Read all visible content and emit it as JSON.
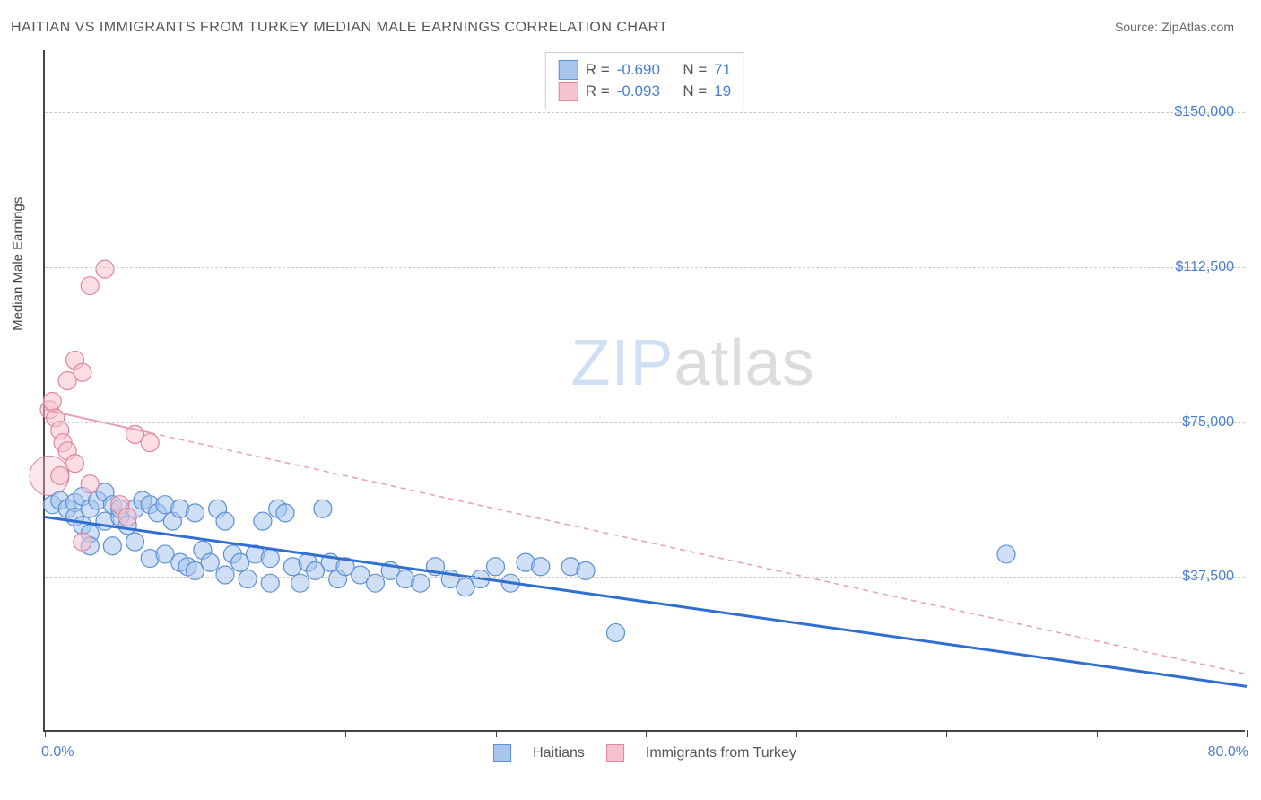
{
  "chart": {
    "title": "HAITIAN VS IMMIGRANTS FROM TURKEY MEDIAN MALE EARNINGS CORRELATION CHART",
    "source_label": "Source: ",
    "source_name": "ZipAtlas.com",
    "y_axis_title": "Median Male Earnings",
    "watermark_zip": "ZIP",
    "watermark_atlas": "atlas",
    "background_color": "#ffffff",
    "grid_color": "#cccccc",
    "axis_color": "#444444",
    "tick_label_color": "#4a7dd8",
    "x_range": [
      0,
      80
    ],
    "y_range": [
      0,
      165000
    ],
    "y_ticks": [
      {
        "value": 37500,
        "label": "$37,500"
      },
      {
        "value": 75000,
        "label": "$75,000"
      },
      {
        "value": 112500,
        "label": "$112,500"
      },
      {
        "value": 150000,
        "label": "$150,000"
      }
    ],
    "x_ticks": [
      0,
      10,
      20,
      30,
      40,
      50,
      60,
      70,
      80
    ],
    "x_min_label": "0.0%",
    "x_max_label": "80.0%",
    "series": [
      {
        "id": "haitians",
        "label": "Haitians",
        "fill_color": "#a8c5ec",
        "stroke_color": "#5b8fd6",
        "fill_opacity": 0.55,
        "line_color": "#2f6fd0",
        "line_width": 3,
        "line_dash": "none",
        "marker_radius": 10,
        "R": "-0.690",
        "N": "71",
        "trend": {
          "x1": 0,
          "y1": 52000,
          "x2": 80,
          "y2": 11000,
          "extrapolated_from_x": 10
        },
        "points": [
          [
            0.5,
            55000
          ],
          [
            1,
            56000
          ],
          [
            1.5,
            54000
          ],
          [
            2,
            55500
          ],
          [
            2,
            52000
          ],
          [
            2.5,
            57000
          ],
          [
            2.5,
            50000
          ],
          [
            3,
            54000
          ],
          [
            3,
            48000
          ],
          [
            3.5,
            56000
          ],
          [
            4,
            51000
          ],
          [
            4,
            58000
          ],
          [
            4.5,
            55000
          ],
          [
            4.5,
            45000
          ],
          [
            5,
            52000
          ],
          [
            5,
            54000
          ],
          [
            5.5,
            50000
          ],
          [
            6,
            54000
          ],
          [
            6,
            46000
          ],
          [
            6.5,
            56000
          ],
          [
            7,
            55000
          ],
          [
            7,
            42000
          ],
          [
            7.5,
            53000
          ],
          [
            8,
            55000
          ],
          [
            8,
            43000
          ],
          [
            8.5,
            51000
          ],
          [
            9,
            41000
          ],
          [
            9,
            54000
          ],
          [
            9.5,
            40000
          ],
          [
            10,
            53000
          ],
          [
            10,
            39000
          ],
          [
            10.5,
            44000
          ],
          [
            11,
            41000
          ],
          [
            11.5,
            54000
          ],
          [
            12,
            38000
          ],
          [
            12,
            51000
          ],
          [
            12.5,
            43000
          ],
          [
            13,
            41000
          ],
          [
            13.5,
            37000
          ],
          [
            14,
            43000
          ],
          [
            14.5,
            51000
          ],
          [
            15,
            36000
          ],
          [
            15,
            42000
          ],
          [
            15.5,
            54000
          ],
          [
            16,
            53000
          ],
          [
            16.5,
            40000
          ],
          [
            17,
            36000
          ],
          [
            17.5,
            41000
          ],
          [
            18,
            39000
          ],
          [
            18.5,
            54000
          ],
          [
            19,
            41000
          ],
          [
            19.5,
            37000
          ],
          [
            20,
            40000
          ],
          [
            21,
            38000
          ],
          [
            22,
            36000
          ],
          [
            23,
            39000
          ],
          [
            24,
            37000
          ],
          [
            25,
            36000
          ],
          [
            26,
            40000
          ],
          [
            27,
            37000
          ],
          [
            28,
            35000
          ],
          [
            29,
            37000
          ],
          [
            30,
            40000
          ],
          [
            31,
            36000
          ],
          [
            32,
            41000
          ],
          [
            33,
            40000
          ],
          [
            35,
            40000
          ],
          [
            36,
            39000
          ],
          [
            38,
            24000
          ],
          [
            64,
            43000
          ],
          [
            3,
            45000
          ]
        ]
      },
      {
        "id": "turkey",
        "label": "Immigrants from Turkey",
        "fill_color": "#f5c2ce",
        "stroke_color": "#e085a0",
        "fill_opacity": 0.55,
        "line_color": "#e99fb4",
        "line_width": 2,
        "line_dash": "6,5",
        "marker_radius": 10,
        "R": "-0.093",
        "N": "19",
        "trend": {
          "x1": 0,
          "y1": 78000,
          "x2": 80,
          "y2": 14000,
          "extrapolated_from_x": 7
        },
        "points": [
          [
            0.3,
            78000
          ],
          [
            0.5,
            80000
          ],
          [
            0.7,
            76000
          ],
          [
            1,
            73000
          ],
          [
            1,
            62000
          ],
          [
            1.2,
            70000
          ],
          [
            1.5,
            68000
          ],
          [
            1.5,
            85000
          ],
          [
            2,
            90000
          ],
          [
            2,
            65000
          ],
          [
            2.5,
            87000
          ],
          [
            2.5,
            46000
          ],
          [
            3,
            108000
          ],
          [
            3,
            60000
          ],
          [
            4,
            112000
          ],
          [
            5,
            55000
          ],
          [
            5.5,
            52000
          ],
          [
            6,
            72000
          ],
          [
            7,
            70000
          ]
        ]
      }
    ],
    "stats_legend": {
      "r_label": "R =",
      "n_label": "N ="
    }
  }
}
